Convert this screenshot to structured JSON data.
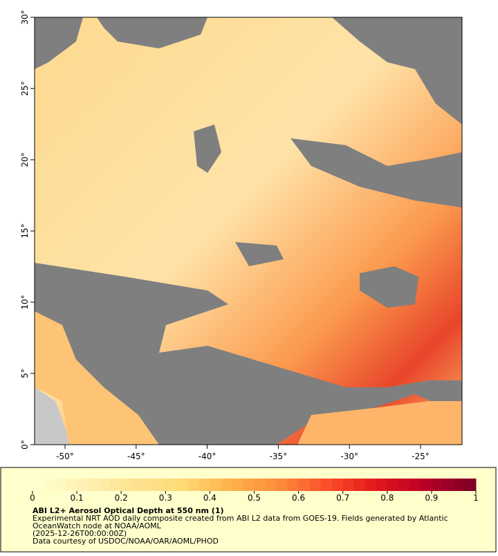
{
  "map": {
    "xlim": [
      -52.14,
      -22.08
    ],
    "ylim": [
      0,
      30
    ],
    "xticks": [
      {
        "value": -50,
        "label": "-50°"
      },
      {
        "value": -45,
        "label": "-45°"
      },
      {
        "value": -40,
        "label": "-40°"
      },
      {
        "value": -35,
        "label": "-35°"
      },
      {
        "value": -30,
        "label": "-30°"
      },
      {
        "value": -25,
        "label": "-25°"
      }
    ],
    "yticks": [
      {
        "value": 0,
        "label": "0°"
      },
      {
        "value": 5,
        "label": "5°"
      },
      {
        "value": 10,
        "label": "10°"
      },
      {
        "value": 15,
        "label": "15°"
      },
      {
        "value": 20,
        "label": "20°"
      },
      {
        "value": 25,
        "label": "25°"
      },
      {
        "value": 30,
        "label": "30°"
      }
    ]
  },
  "colorbar": {
    "range": [
      0,
      1
    ],
    "ticks": [
      0,
      0.1,
      0.2,
      0.3,
      0.4,
      0.5,
      0.6,
      0.7,
      0.8,
      0.9,
      1
    ]
  },
  "legend": {
    "title": "ABI L2+ Aerosol Optical Depth at 550 nm (1)",
    "lines": [
      "Experimental NRT AOD daily composite created from ABI L2 data from GOES-19. Fields generated by Atlantic",
      "OceanWatch node at NOAA/AOML",
      "(2025-12-26T00:00:00Z)",
      "Data courtesy of USDOC/NOAA/OAR/AOML/PHOD"
    ]
  }
}
